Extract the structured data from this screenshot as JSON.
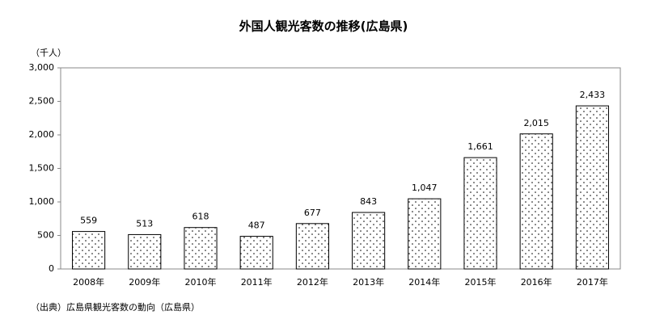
{
  "chart_data": {
    "type": "bar",
    "title": "外国人観光客数の推移(広島県)",
    "y_label": "（千人）",
    "source": "（出典）広島県観光客数の動向（広島県）",
    "categories": [
      "2008年",
      "2009年",
      "2010年",
      "2011年",
      "2012年",
      "2013年",
      "2014年",
      "2015年",
      "2016年",
      "2017年"
    ],
    "values": [
      559,
      513,
      618,
      487,
      677,
      843,
      1047,
      1661,
      2015,
      2433
    ],
    "value_labels": [
      "559",
      "513",
      "618",
      "487",
      "677",
      "843",
      "1,047",
      "1,661",
      "2,015",
      "2,433"
    ],
    "color": "#000000",
    "ylim": [
      0,
      3000
    ],
    "yticks": [
      0,
      500,
      {
        "value": 1000,
        "label": "1,000"
      },
      {
        "value": 1500,
        "label": "1,500"
      },
      {
        "value": 2000,
        "label": "2,000"
      },
      {
        "value": 2500,
        "label": "2,500"
      },
      {
        "value": 3000,
        "label": "3,000"
      }
    ],
    "grid": false
  }
}
